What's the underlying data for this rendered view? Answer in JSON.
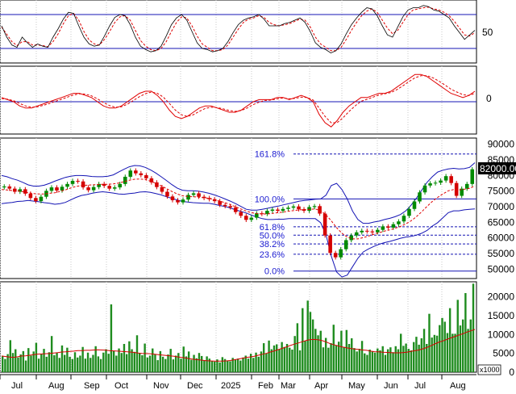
{
  "chart_data": {
    "type": "line",
    "months": [
      "Jul",
      "Aug",
      "Sep",
      "Oct",
      "Nov",
      "Dec",
      "2025",
      "Feb",
      "Mar",
      "Apr",
      "May",
      "Jun",
      "Jul",
      "Aug"
    ],
    "stochastic": {
      "ytick": "50",
      "levels": [
        80,
        20
      ],
      "k": [
        60,
        40,
        26,
        22,
        40,
        30,
        22,
        28,
        24,
        22,
        40,
        55,
        72,
        84,
        82,
        60,
        40,
        28,
        24,
        26,
        42,
        60,
        75,
        80,
        78,
        62,
        40,
        24,
        18,
        14,
        16,
        24,
        42,
        62,
        74,
        80,
        70,
        50,
        30,
        20,
        18,
        14,
        16,
        20,
        32,
        48,
        62,
        70,
        74,
        76,
        80,
        72,
        60,
        60,
        60,
        64,
        66,
        70,
        74,
        66,
        50,
        30,
        22,
        18,
        12,
        16,
        28,
        46,
        62,
        74,
        84,
        92,
        90,
        78,
        60,
        44,
        40,
        58,
        76,
        88,
        92,
        92,
        96,
        94,
        88,
        86,
        80,
        74,
        60,
        48,
        36,
        44,
        52
      ],
      "d": [
        58,
        45,
        32,
        25,
        32,
        32,
        26,
        26,
        25,
        23,
        32,
        46,
        64,
        78,
        82,
        70,
        50,
        35,
        28,
        26,
        36,
        50,
        66,
        76,
        78,
        70,
        52,
        34,
        24,
        18,
        16,
        20,
        32,
        50,
        66,
        76,
        74,
        60,
        42,
        28,
        22,
        16,
        16,
        18,
        26,
        40,
        54,
        66,
        72,
        74,
        78,
        75,
        66,
        62,
        60,
        62,
        64,
        68,
        72,
        70,
        58,
        40,
        28,
        22,
        16,
        16,
        22,
        36,
        52,
        66,
        78,
        86,
        90,
        84,
        70,
        56,
        46,
        52,
        66,
        80,
        88,
        90,
        92,
        93,
        90,
        88,
        84,
        78,
        68,
        56,
        44,
        42,
        48
      ]
    },
    "oscillator": {
      "ytick": "0",
      "a": [
        0.2,
        0.1,
        0.0,
        -0.2,
        -0.3,
        -0.3,
        -0.2,
        -0.1,
        0.0,
        0.1,
        0.2,
        0.3,
        0.4,
        0.4,
        0.3,
        0.2,
        0.0,
        -0.2,
        -0.3,
        -0.3,
        -0.2,
        0.0,
        0.2,
        0.4,
        0.5,
        0.5,
        0.3,
        0.0,
        -0.4,
        -0.7,
        -0.8,
        -0.7,
        -0.5,
        -0.3,
        -0.2,
        -0.2,
        -0.3,
        -0.4,
        -0.5,
        -0.5,
        -0.4,
        -0.2,
        0.0,
        0.1,
        0.1,
        0.1,
        0.2,
        0.2,
        0.1,
        0.2,
        0.3,
        0.2,
        0.0,
        -0.6,
        -1.0,
        -1.2,
        -0.9,
        -0.5,
        -0.2,
        0.0,
        0.2,
        0.2,
        0.3,
        0.4,
        0.4,
        0.5,
        0.7,
        0.9,
        1.1,
        1.3,
        1.3,
        1.2,
        1.0,
        0.8,
        0.6,
        0.4,
        0.3,
        0.2,
        0.3,
        0.5
      ],
      "b": [
        0.15,
        0.12,
        0.05,
        -0.08,
        -0.2,
        -0.26,
        -0.24,
        -0.17,
        -0.08,
        0.02,
        0.12,
        0.22,
        0.32,
        0.38,
        0.36,
        0.28,
        0.14,
        -0.04,
        -0.18,
        -0.26,
        -0.24,
        -0.12,
        0.06,
        0.24,
        0.38,
        0.46,
        0.4,
        0.22,
        -0.08,
        -0.4,
        -0.62,
        -0.7,
        -0.62,
        -0.46,
        -0.32,
        -0.26,
        -0.28,
        -0.34,
        -0.42,
        -0.46,
        -0.42,
        -0.3,
        -0.14,
        -0.02,
        0.06,
        0.08,
        0.14,
        0.18,
        0.14,
        0.16,
        0.22,
        0.2,
        0.08,
        -0.3,
        -0.7,
        -1.0,
        -1.0,
        -0.76,
        -0.46,
        -0.2,
        0.02,
        0.12,
        0.22,
        0.32,
        0.38,
        0.44,
        0.58,
        0.76,
        0.96,
        1.14,
        1.24,
        1.24,
        1.14,
        0.98,
        0.8,
        0.6,
        0.46,
        0.34,
        0.3,
        0.4
      ]
    },
    "price": {
      "yticks": [
        90000,
        85000,
        80000,
        75000,
        70000,
        65000,
        60000,
        55000,
        50000
      ],
      "ylim": [
        47000,
        92000
      ],
      "last_label": "82000.00",
      "fib_labels": [
        "161.8%",
        "100.0%",
        "61.8%",
        "50.0%",
        "38.2%",
        "23.6%",
        "0.0%"
      ],
      "fib_levels": [
        86900,
        72500,
        63600,
        60900,
        58100,
        54800,
        49400
      ],
      "close": [
        76500,
        75800,
        74800,
        75600,
        74200,
        72800,
        71800,
        73200,
        75100,
        76200,
        75200,
        76400,
        77300,
        78300,
        78100,
        76200,
        75300,
        76300,
        77300,
        76700,
        75800,
        76200,
        77300,
        79600,
        81600,
        80700,
        80100,
        79100,
        77800,
        76300,
        74800,
        73300,
        72100,
        71400,
        72300,
        73800,
        74300,
        73200,
        72800,
        72400,
        71800,
        70600,
        70200,
        69800,
        68300,
        67100,
        65800,
        66500,
        67900,
        67700,
        68700,
        69100,
        68700,
        69300,
        69700,
        70100,
        69200,
        68700,
        69900,
        70200,
        67800,
        60800,
        55200,
        53800,
        56400,
        59300,
        60800,
        61800,
        62300,
        62100,
        61800,
        62600,
        63700,
        63300,
        64400,
        65300,
        67100,
        69300,
        71700,
        74600,
        76800,
        77500,
        77700,
        78400,
        79800,
        77600,
        73500,
        75800,
        77300,
        82000
      ],
      "ma": [
        75500,
        75400,
        75200,
        75100,
        74800,
        74500,
        74200,
        74100,
        74100,
        74300,
        74500,
        74900,
        75400,
        76000,
        76500,
        76800,
        76900,
        77000,
        77100,
        77200,
        77200,
        77300,
        77600,
        78000,
        78500,
        78800,
        78900,
        78700,
        78200,
        77500,
        76700,
        75800,
        74900,
        74100,
        73500,
        73300,
        73200,
        73100,
        72900,
        72700,
        72300,
        71800,
        71300,
        70700,
        70000,
        69300,
        68600,
        68100,
        67800,
        67700,
        67700,
        67900,
        68100,
        68300,
        68600,
        68800,
        69000,
        69100,
        69200,
        69300,
        68700,
        67400,
        65500,
        63300,
        61500,
        60300,
        59700,
        59700,
        60100,
        60600,
        61200,
        61700,
        62200,
        62600,
        63100,
        63700,
        64500,
        65500,
        66800,
        68400,
        70100,
        71700,
        73000,
        74100,
        75100,
        75500,
        75400,
        75600,
        75900,
        76700
      ],
      "band_upper": [
        80000,
        79600,
        79000,
        78500,
        77800,
        77000,
        76600,
        76600,
        76900,
        77500,
        78200,
        78800,
        79400,
        79800,
        80000,
        80000,
        79900,
        79700,
        79600,
        79600,
        79800,
        80200,
        81100,
        82000,
        82800,
        83200,
        83100,
        82600,
        81800,
        80800,
        79600,
        78400,
        77100,
        76000,
        75300,
        75100,
        75100,
        75000,
        74700,
        74300,
        73800,
        73200,
        72500,
        71800,
        71000,
        70100,
        69200,
        68900,
        68900,
        69200,
        69500,
        69900,
        70200,
        70600,
        71000,
        71400,
        71800,
        72000,
        72200,
        72400,
        72500,
        73700,
        76800,
        77500,
        75500,
        72500,
        68600,
        65900,
        64700,
        64700,
        65100,
        65400,
        65900,
        66300,
        66800,
        67500,
        68700,
        70500,
        72700,
        75300,
        77800,
        79600,
        81100,
        81700,
        82100,
        82300,
        82100,
        82200,
        82600,
        84100
      ],
      "band_lower": [
        71000,
        71200,
        71400,
        71700,
        71800,
        72000,
        71800,
        71600,
        71300,
        71100,
        70800,
        71000,
        71400,
        72200,
        73000,
        73600,
        73900,
        74300,
        74600,
        74800,
        74600,
        74400,
        74100,
        74000,
        74200,
        74400,
        74700,
        74800,
        74600,
        74200,
        73800,
        73200,
        72700,
        72200,
        71700,
        71500,
        71300,
        71200,
        71100,
        71100,
        70800,
        70400,
        70100,
        69600,
        69000,
        68500,
        68000,
        67300,
        66700,
        66200,
        65900,
        65900,
        66000,
        66000,
        66200,
        66200,
        66200,
        66200,
        66200,
        66200,
        64900,
        61100,
        54200,
        49100,
        47500,
        48100,
        50800,
        53500,
        55500,
        56500,
        57300,
        58000,
        58500,
        58900,
        59400,
        59900,
        60300,
        60500,
        60900,
        61500,
        62400,
        63800,
        64900,
        66500,
        68100,
        68700,
        68700,
        69000,
        69200,
        69300
      ]
    },
    "volume": {
      "yticks": [
        20000,
        15000,
        10000,
        5000,
        0
      ],
      "ymax": 24000,
      "multiplier_label": "x1000",
      "bars": [
        4200,
        3500,
        4800,
        8500,
        5100,
        6100,
        3900,
        4700,
        5600,
        3100,
        6400,
        4400,
        5500,
        7800,
        3600,
        4900,
        6200,
        4100,
        5300,
        9600,
        4500,
        5200,
        3800,
        7100,
        4600,
        6500,
        4100,
        3500,
        5300,
        3900,
        4400,
        6700,
        3600,
        5200,
        3800,
        4600,
        6900,
        4200,
        3500,
        5200,
        6100,
        4900,
        18000,
        5600,
        4400,
        6300,
        5100,
        7500,
        4800,
        8200,
        6100,
        5400,
        9800,
        5100,
        4500,
        7600,
        3900,
        4400,
        6300,
        4800,
        3200,
        5600,
        4100,
        3500,
        4700,
        6200,
        3400,
        4400,
        5100,
        3600,
        6800,
        4200,
        5500,
        3300,
        4600,
        3700,
        5100,
        4300,
        3200,
        4200,
        3600,
        3000,
        2800,
        3400,
        2600,
        4000,
        3500,
        3100,
        2900,
        3800,
        3300,
        3600,
        3100,
        3900,
        4400,
        3600,
        4900,
        3800,
        5200,
        4100,
        5500,
        7700,
        5000,
        8400,
        6100,
        7100,
        7400,
        6000,
        8000,
        6700,
        7500,
        6500,
        6000,
        9600,
        13000,
        5800,
        17000,
        8300,
        19000,
        16000,
        14000,
        11500,
        9800,
        11000,
        6600,
        9100,
        6500,
        7700,
        12600,
        7200,
        8100,
        11000,
        6700,
        11200,
        7500,
        9000,
        6400,
        5500,
        6200,
        8300,
        5000,
        4600,
        6000,
        5500,
        5200,
        6300,
        5800,
        6900,
        4600,
        6100,
        6600,
        5300,
        6900,
        6100,
        10200,
        7000,
        7600,
        6200,
        5800,
        8000,
        9400,
        7300,
        9000,
        11500,
        7500,
        15500,
        9200,
        9900,
        9700,
        12500,
        14400,
        13400,
        10400,
        17000,
        10200,
        10200,
        19200,
        12400,
        14000,
        21000,
        11500,
        14000,
        23500
      ],
      "ma": [
        4300,
        4150,
        4000,
        3950,
        4100,
        4300,
        4350,
        4500,
        4650,
        4800,
        4850,
        4900,
        5000,
        5100,
        5200,
        5350,
        5400,
        5500,
        5600,
        5750,
        5750,
        5800,
        5800,
        5900,
        5950,
        5900,
        5850,
        5700,
        5650,
        5600,
        5500,
        5450,
        5350,
        5250,
        5100,
        5000,
        4950,
        4900,
        4800,
        4650,
        4550,
        4450,
        4350,
        4250,
        4050,
        3900,
        3750,
        3550,
        3400,
        3300,
        3200,
        3050,
        3000,
        2950,
        2950,
        2950,
        3000,
        3100,
        3300,
        3500,
        3700,
        3900,
        4050,
        4250,
        4500,
        4750,
        5000,
        5350,
        5650,
        6000,
        6350,
        6700,
        7100,
        7450,
        7750,
        8100,
        8450,
        8650,
        8700,
        8600,
        8350,
        8000,
        7550,
        7250,
        6950,
        6700,
        6500,
        6300,
        6150,
        6050,
        5900,
        5800,
        5600,
        5450,
        5400,
        5300,
        5250,
        5200,
        5150,
        5150,
        5200,
        5300,
        5500,
        5700,
        5900,
        6200,
        6550,
        7000,
        7500,
        7950,
        8300,
        8700,
        9100,
        9450,
        9850,
        10200,
        10650,
        11000,
        11350
      ]
    }
  }
}
